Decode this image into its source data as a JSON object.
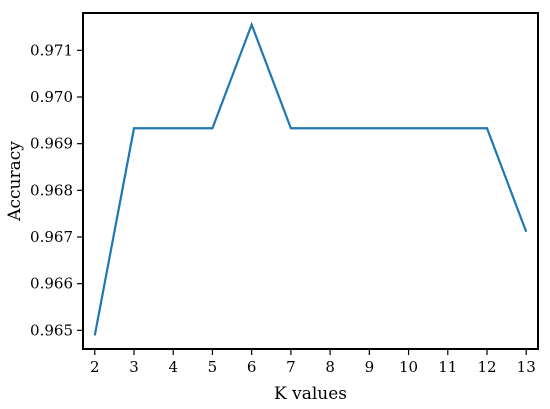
{
  "chart_data": {
    "type": "line",
    "title": "",
    "xlabel": "K values",
    "ylabel": "Accuracy",
    "xlim": [
      1.7,
      13.3
    ],
    "ylim": [
      0.9646,
      0.9718
    ],
    "x_ticks": [
      2,
      3,
      4,
      5,
      6,
      7,
      8,
      9,
      10,
      11,
      12,
      13
    ],
    "y_ticks": [
      0.965,
      0.966,
      0.967,
      0.968,
      0.969,
      0.97,
      0.971
    ],
    "y_tick_labels": [
      "0.965",
      "0.966",
      "0.967",
      "0.968",
      "0.969",
      "0.970",
      "0.971"
    ],
    "grid": false,
    "line_color": "#1f77b4",
    "series": [
      {
        "x": [
          2,
          3,
          4,
          5,
          6,
          7,
          8,
          9,
          10,
          11,
          12,
          13
        ],
        "values": [
          0.96489,
          0.96933,
          0.96933,
          0.96933,
          0.97155,
          0.96933,
          0.96933,
          0.96933,
          0.96933,
          0.96933,
          0.96933,
          0.96711
        ]
      }
    ]
  }
}
